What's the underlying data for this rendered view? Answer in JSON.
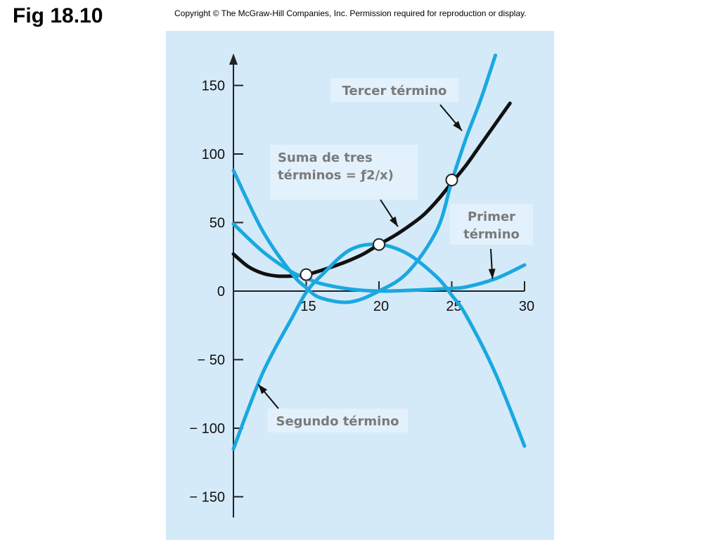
{
  "title": "Fig 18.10",
  "copyright": "Copyright © The McGraw-Hill Companies, Inc. Permission required for reproduction or display.",
  "colors": {
    "panel": "#d5eaf8",
    "curve_blue": "#1aa8e0",
    "curve_black": "#111111",
    "axis": "#222222",
    "label_box": "#e2f1fb",
    "label_text": "#7a7a7a"
  },
  "chart_data": {
    "type": "line",
    "title": "",
    "xlabel": "",
    "ylabel": "",
    "xlim": [
      10,
      30
    ],
    "ylim": [
      -150,
      150
    ],
    "x_ticks": [
      15,
      20,
      25,
      30
    ],
    "y_ticks": [
      150,
      100,
      50,
      0,
      -50,
      -100,
      -150
    ],
    "y_tick_labels": [
      "150",
      "100",
      "50",
      "0",
      "− 50",
      "− 100",
      "− 150"
    ],
    "grid": false,
    "series": [
      {
        "name": "Primer término",
        "color": "#1aa8e0",
        "x": [
          10,
          12,
          14,
          15,
          16,
          18,
          20,
          22,
          24,
          25,
          26,
          28,
          30
        ],
        "y": [
          49,
          29,
          14,
          9.5,
          5.5,
          1.5,
          0,
          0.5,
          1.5,
          2,
          3,
          9,
          19
        ]
      },
      {
        "name": "Segundo término",
        "color": "#1aa8e0",
        "x": [
          10,
          12,
          14,
          15,
          16,
          18,
          20,
          22,
          24,
          25,
          26,
          28,
          30
        ],
        "y": [
          -115,
          -60,
          -20,
          -1,
          11,
          30,
          34,
          27,
          10,
          -3,
          -18,
          -60,
          -113
        ]
      },
      {
        "name": "Tercer término",
        "color": "#1aa8e0",
        "x": [
          10,
          12,
          14,
          15,
          16,
          18,
          20,
          22,
          24,
          25,
          26,
          27,
          28
        ],
        "y": [
          88,
          44,
          13,
          2.5,
          -5,
          -8,
          0,
          14,
          45,
          80,
          112,
          140,
          172
        ]
      },
      {
        "name": "Suma de tres términos = ƒ2(x)",
        "color": "#111111",
        "x": [
          10,
          11,
          12,
          13,
          14,
          15,
          16,
          17,
          18,
          19,
          20,
          21,
          22,
          23,
          24,
          25,
          26,
          27,
          28,
          29
        ],
        "y": [
          27,
          18,
          13,
          11,
          11,
          12,
          15,
          18.5,
          22.5,
          27.5,
          34,
          40,
          47,
          55,
          66,
          79,
          92,
          107,
          122,
          137
        ]
      }
    ],
    "markers": [
      {
        "x": 15,
        "y": 12
      },
      {
        "x": 20,
        "y": 34
      },
      {
        "x": 25,
        "y": 81
      }
    ],
    "annotations": [
      {
        "lines": [
          "Tercer término"
        ],
        "arrow_to": [
          25.7,
          117
        ]
      },
      {
        "lines": [
          "Suma de tres",
          "términos = ƒ2/x)"
        ],
        "arrow_to": [
          21.3,
          47
        ]
      },
      {
        "lines": [
          "Primer",
          "término"
        ],
        "arrow_to": [
          27.8,
          9
        ]
      },
      {
        "lines": [
          "Segundo término"
        ],
        "arrow_to": [
          11.7,
          -68
        ]
      }
    ]
  }
}
